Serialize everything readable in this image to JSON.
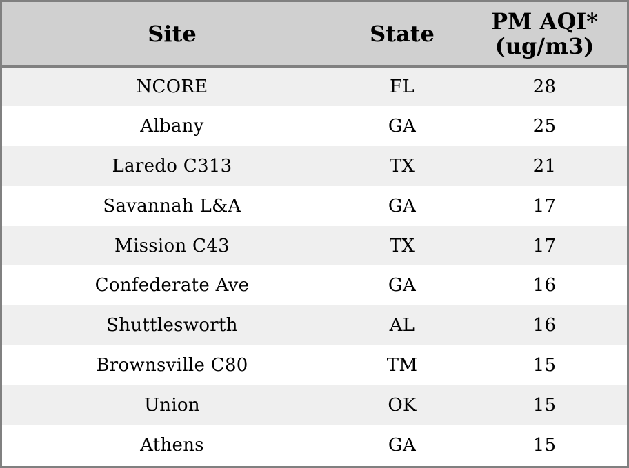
{
  "chart_data": {
    "type": "table",
    "columns": [
      "Site",
      "State",
      "PM AQI*",
      "(ug/m3)"
    ],
    "header": {
      "site": "Site",
      "state": "State",
      "aqi_line1": "PM AQI*",
      "aqi_line2": "(ug/m3)"
    },
    "rows": [
      {
        "site": "NCORE",
        "state": "FL",
        "aqi": "28"
      },
      {
        "site": "Albany",
        "state": "GA",
        "aqi": "25"
      },
      {
        "site": "Laredo C313",
        "state": "TX",
        "aqi": "21"
      },
      {
        "site": "Savannah L&A",
        "state": "GA",
        "aqi": "17"
      },
      {
        "site": "Mission C43",
        "state": "TX",
        "aqi": "17"
      },
      {
        "site": "Confederate Ave",
        "state": "GA",
        "aqi": "16"
      },
      {
        "site": "Shuttlesworth",
        "state": "AL",
        "aqi": "16"
      },
      {
        "site": "Brownsville C80",
        "state": "TM",
        "aqi": "15"
      },
      {
        "site": "Union",
        "state": "OK",
        "aqi": "15"
      },
      {
        "site": "Athens",
        "state": "GA",
        "aqi": "15"
      }
    ],
    "colors": {
      "header_background": "#d0d0d0",
      "row_stripe": "#efefef",
      "row_plain": "#ffffff",
      "border": "#808080"
    }
  }
}
